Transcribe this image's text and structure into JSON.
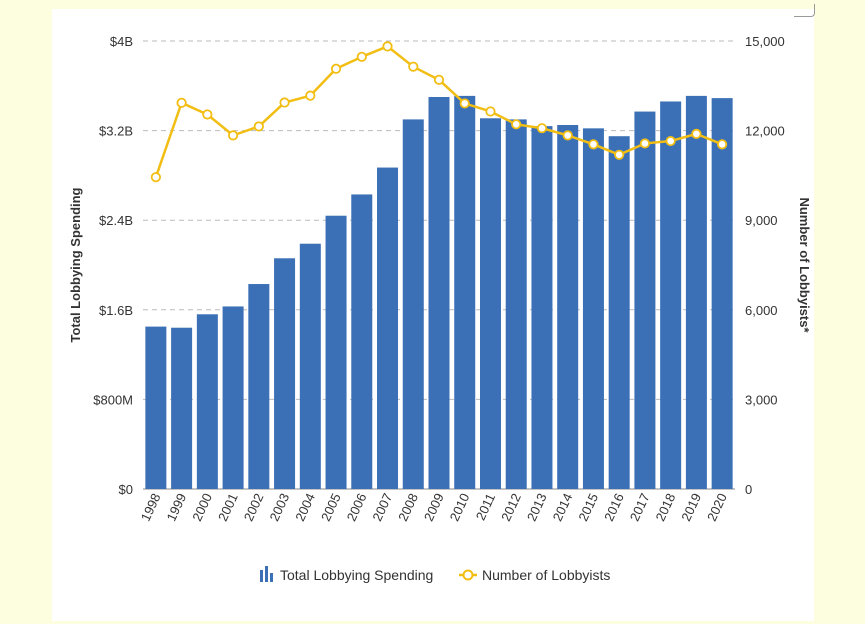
{
  "chart_data": {
    "type": "bar+line",
    "categories": [
      "1998",
      "1999",
      "2000",
      "2001",
      "2002",
      "2003",
      "2004",
      "2005",
      "2006",
      "2007",
      "2008",
      "2009",
      "2010",
      "2011",
      "2012",
      "2013",
      "2014",
      "2015",
      "2016",
      "2017",
      "2018",
      "2019",
      "2020"
    ],
    "series": [
      {
        "name": "Total Lobbying Spending",
        "type": "bar",
        "axis": "left",
        "color": "#3b6fb6",
        "values": [
          1.45,
          1.44,
          1.56,
          1.63,
          1.83,
          2.06,
          2.19,
          2.44,
          2.63,
          2.87,
          3.3,
          3.5,
          3.51,
          3.31,
          3.3,
          3.24,
          3.25,
          3.22,
          3.15,
          3.37,
          3.46,
          3.51,
          3.49
        ]
      },
      {
        "name": "Number of Lobbyists",
        "type": "line",
        "axis": "right",
        "color": "#f2be14",
        "values": [
          10440,
          12930,
          12540,
          11840,
          12140,
          12940,
          13170,
          14070,
          14470,
          14820,
          14140,
          13700,
          12910,
          12640,
          12210,
          12080,
          11840,
          11540,
          11190,
          11570,
          11650,
          11890,
          11540
        ]
      }
    ],
    "y_left": {
      "label": "Total Lobbying Spending",
      "range": [
        0,
        4.0
      ],
      "ticks": [
        0,
        0.8,
        1.6,
        2.4,
        3.2,
        4.0
      ],
      "tick_labels": [
        "$0",
        "$800M",
        "$1.6B",
        "$2.4B",
        "$3.2B",
        "$4B"
      ]
    },
    "y_right": {
      "label": "Number of Lobbyists*",
      "range": [
        0,
        15000
      ],
      "ticks": [
        0,
        3000,
        6000,
        9000,
        12000,
        15000
      ],
      "tick_labels": [
        "0",
        "3,000",
        "6,000",
        "9,000",
        "12,000",
        "15,000"
      ]
    },
    "grid": "horizontal dashed",
    "legend_position": "bottom"
  },
  "colors": {
    "background": "#fdfde0",
    "panel": "#ffffff",
    "bar": "#3b6fb6",
    "line": "#f2be14",
    "grid": "#bbbbbb"
  }
}
